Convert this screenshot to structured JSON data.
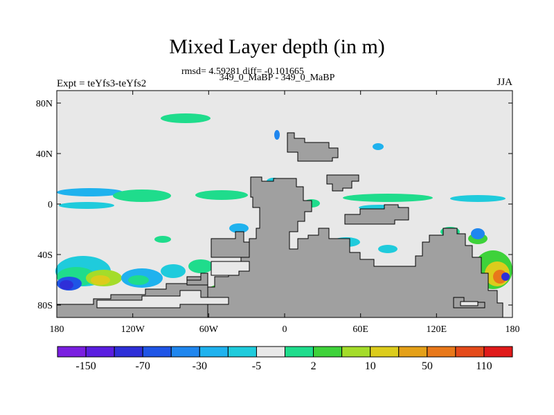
{
  "title": "Mixed Layer depth (in m)",
  "stats": "rmsd= 4.59281 diff= -0.101665",
  "subtitle": "349_0_MaBP - 349_0_MaBP",
  "left_label": "Expt = teYfs3-teYfs2",
  "right_label": "JJA",
  "chart_data": {
    "type": "heatmap",
    "title": "Mixed Layer depth (in m)",
    "x_ticks": [
      "180",
      "120W",
      "60W",
      "0",
      "60E",
      "120E",
      "180"
    ],
    "y_ticks": [
      "80N",
      "40N",
      "0",
      "40S",
      "80S"
    ],
    "xlim": [
      -180,
      180
    ],
    "ylim": [
      -90,
      90
    ],
    "colorbar": {
      "colors": [
        "#7a1fe0",
        "#5a1ee0",
        "#2e2fd8",
        "#1f55e6",
        "#1f86ee",
        "#1fb2ee",
        "#1fcbdc",
        "#e8e8e8",
        "#1fdc8c",
        "#3ed23a",
        "#a4dc2a",
        "#dccc1c",
        "#e4a018",
        "#e8781a",
        "#e44a1a",
        "#e01a1a"
      ],
      "labels": [
        "-150",
        "-70",
        "-30",
        "-5",
        "2",
        "10",
        "50",
        "110"
      ]
    }
  },
  "colors": {
    "land": "#a0a0a0",
    "neutral": "#e8e8e8",
    "outline": "#000000"
  }
}
